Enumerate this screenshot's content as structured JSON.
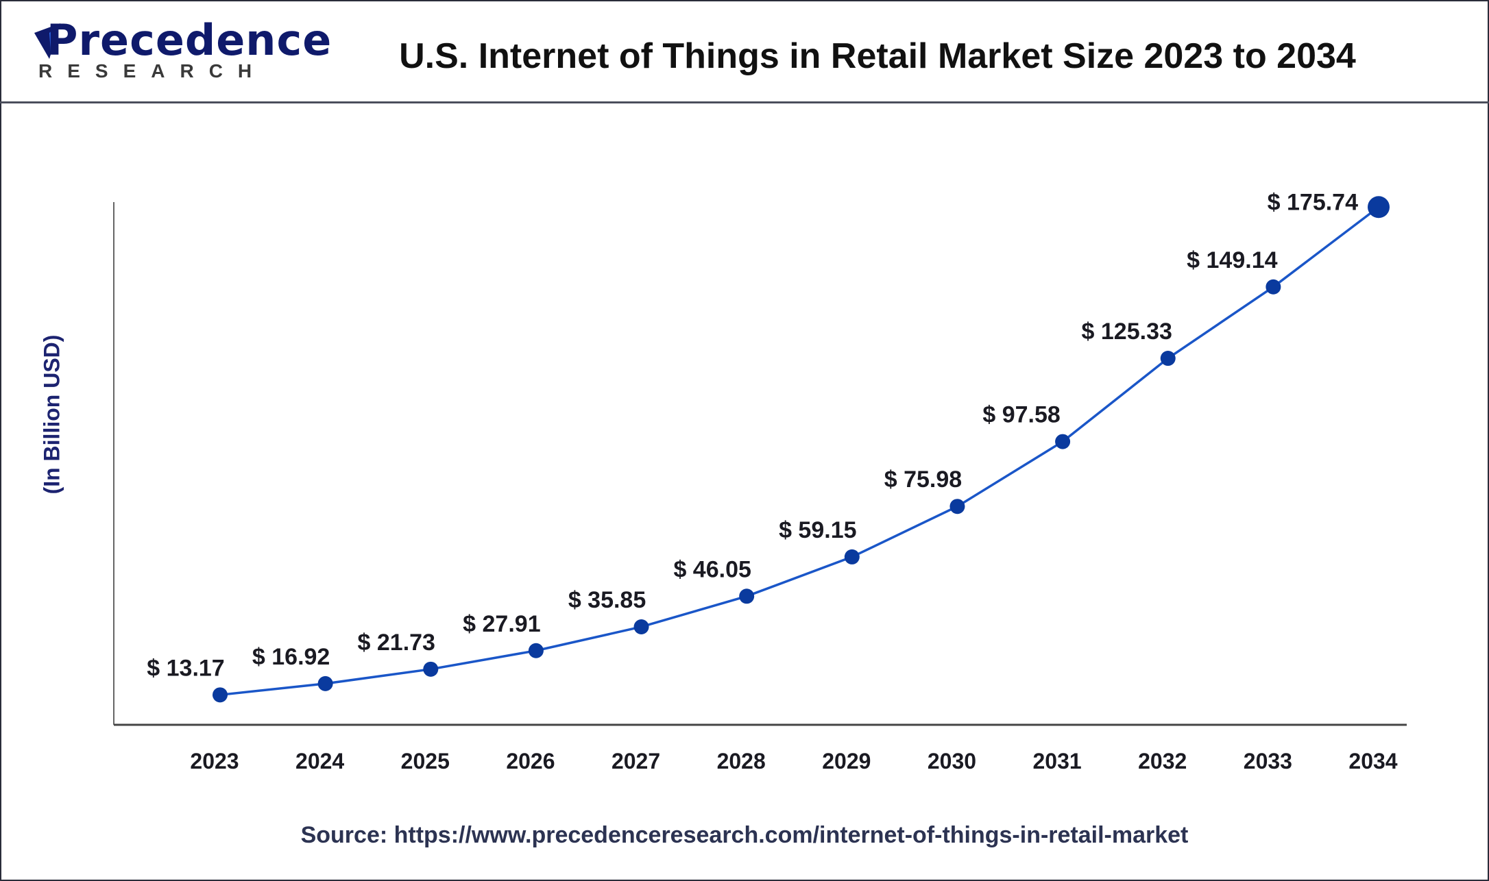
{
  "logo": {
    "brand": "Precedence",
    "sub": "RESEARCH"
  },
  "header": {
    "title": "U.S. Internet of Things in Retail Market Size 2023 to 2034"
  },
  "source": "Source: https://www.precedenceresearch.com/internet-of-things-in-retail-market",
  "colors": {
    "line": "#1a56c8",
    "marker": "#0a3a9e",
    "axis": "#555555"
  },
  "chart_data": {
    "type": "line",
    "title": "U.S. Internet of Things in Retail Market Size 2023 to 2034",
    "xlabel": "",
    "ylabel": "(In Billion USD)",
    "categories": [
      "2023",
      "2024",
      "2025",
      "2026",
      "2027",
      "2028",
      "2029",
      "2030",
      "2031",
      "2032",
      "2033",
      "2034"
    ],
    "values": [
      13.17,
      16.92,
      21.73,
      27.91,
      35.85,
      46.05,
      59.15,
      75.98,
      97.58,
      125.33,
      149.14,
      175.74
    ],
    "labels": [
      "$ 13.17",
      "$ 16.92",
      "$ 21.73",
      "$ 27.91",
      "$ 35.85",
      "$ 46.05",
      "$ 59.15",
      "$ 75.98",
      "$ 97.58",
      "$ 125.33",
      "$ 149.14",
      "$ 175.74"
    ],
    "grid": false,
    "legend": "none"
  }
}
